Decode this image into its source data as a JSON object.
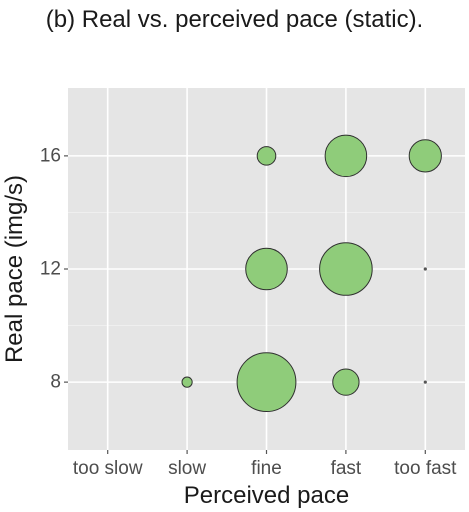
{
  "chart_data": {
    "type": "scatter",
    "title": "(b) Real vs. perceived pace (static).",
    "xlabel": "Perceived pace",
    "ylabel": "Real pace (img/s)",
    "x_categories": [
      "too slow",
      "slow",
      "fine",
      "fast",
      "too fast"
    ],
    "y_ticks": [
      8,
      12,
      16
    ],
    "ylim": [
      5.6,
      18.4
    ],
    "grid": true,
    "background": "#e5e5e5",
    "point_color": "#8fcc7a",
    "point_stroke": "#2f2f2f",
    "gridline_color": "#ffffff",
    "points": [
      {
        "x": "fine",
        "y": 16,
        "count": 1
      },
      {
        "x": "fast",
        "y": 16,
        "count": 5
      },
      {
        "x": "too fast",
        "y": 16,
        "count": 3
      },
      {
        "x": "fine",
        "y": 12,
        "count": 5
      },
      {
        "x": "fast",
        "y": 12,
        "count": 8
      },
      {
        "x": "too fast",
        "y": 12,
        "count": 0
      },
      {
        "x": "slow",
        "y": 8,
        "count": 0.3
      },
      {
        "x": "fine",
        "y": 8,
        "count": 10
      },
      {
        "x": "fast",
        "y": 8,
        "count": 2
      },
      {
        "x": "too fast",
        "y": 8,
        "count": 0
      }
    ]
  }
}
